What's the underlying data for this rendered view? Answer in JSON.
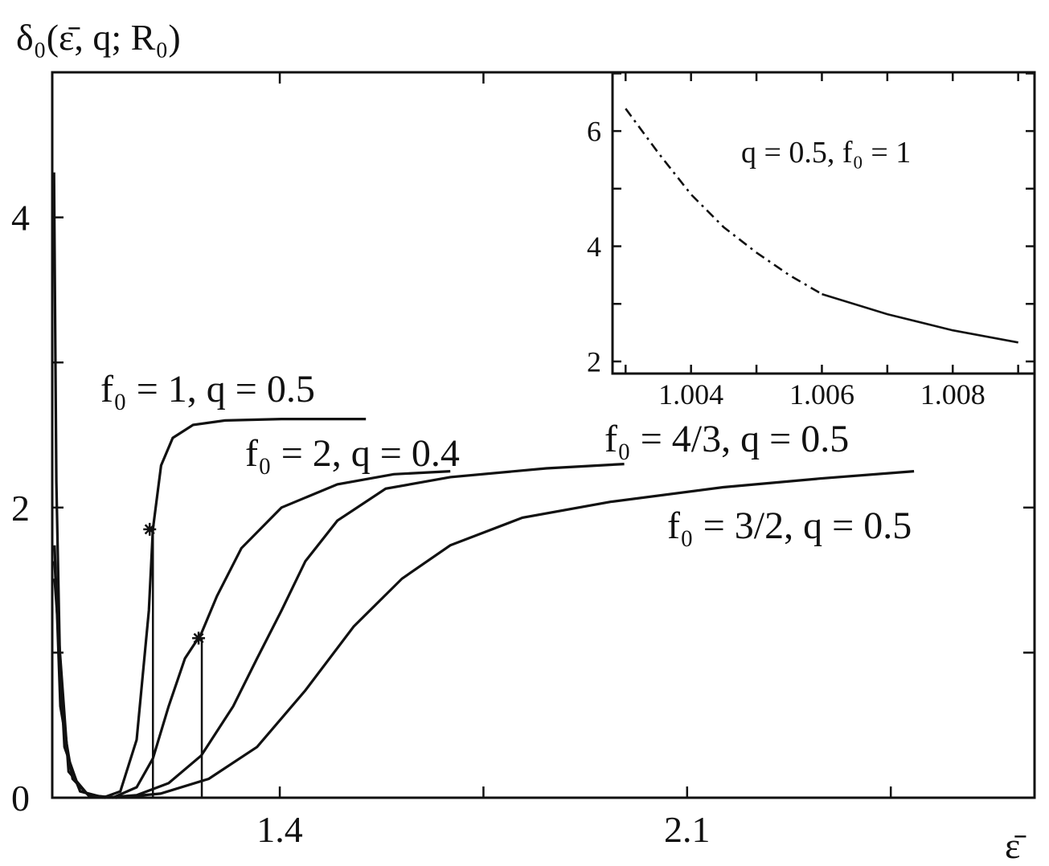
{
  "chart_data": [
    {
      "type": "line",
      "ylabel": "δ₀(ε̄, q; R₀)",
      "xlabel": "ε̄",
      "xlim": [
        1.009,
        2.697
      ],
      "xticks": [
        1.4,
        2.1
      ],
      "xminor": [
        1.75,
        2.45
      ],
      "ylim": [
        0,
        5
      ],
      "yticks": [
        0,
        2,
        4
      ],
      "yminor": [
        1,
        3
      ],
      "series": [
        {
          "name": "f₀ = 1, q = 0.5",
          "color": "#111111",
          "style": "solid",
          "x": [
            1.012,
            1.016,
            1.023,
            1.037,
            1.057,
            1.096,
            1.126,
            1.154,
            1.175,
            1.182,
            1.196,
            1.216,
            1.251,
            1.306,
            1.403,
            1.548
          ],
          "values": [
            4.31,
            2.18,
            0.79,
            0.24,
            0.044,
            0,
            0.044,
            0.4,
            1.29,
            1.85,
            2.29,
            2.48,
            2.57,
            2.6,
            2.61,
            2.61
          ]
        },
        {
          "name": "f₀ = 2, q = 0.4",
          "color": "#111111",
          "style": "solid",
          "x": [
            1.013,
            1.023,
            1.044,
            1.071,
            1.113,
            1.154,
            1.182,
            1.209,
            1.237,
            1.265,
            1.292,
            1.334,
            1.403,
            1.499,
            1.596,
            1.693
          ],
          "values": [
            1.74,
            0.63,
            0.13,
            0.017,
            0,
            0.072,
            0.27,
            0.63,
            0.96,
            1.13,
            1.39,
            1.72,
            2.0,
            2.16,
            2.23,
            2.25
          ]
        },
        {
          "name": "f₀ = 4/3, q = 0.5",
          "color": "#111111",
          "style": "solid",
          "x": [
            1.013,
            1.03,
            1.057,
            1.099,
            1.154,
            1.209,
            1.265,
            1.32,
            1.361,
            1.403,
            1.444,
            1.499,
            1.582,
            1.693,
            1.858,
            1.992
          ],
          "values": [
            1.63,
            0.35,
            0.044,
            0,
            0.017,
            0.1,
            0.29,
            0.63,
            0.96,
            1.29,
            1.63,
            1.91,
            2.13,
            2.21,
            2.27,
            2.3
          ]
        },
        {
          "name": "f₀ = 3/2, q = 0.5",
          "color": "#111111",
          "style": "solid",
          "x": [
            1.013,
            1.037,
            1.071,
            1.119,
            1.195,
            1.278,
            1.361,
            1.444,
            1.527,
            1.61,
            1.693,
            1.817,
            1.969,
            2.162,
            2.328,
            2.49
          ],
          "values": [
            1.51,
            0.18,
            0.017,
            0,
            0.028,
            0.13,
            0.35,
            0.74,
            1.18,
            1.51,
            1.74,
            1.93,
            2.04,
            2.14,
            2.2,
            2.25
          ]
        }
      ],
      "markers": [
        {
          "x": 1.182,
          "y": 1.85
        },
        {
          "x": 1.266,
          "y": 1.1
        }
      ]
    },
    {
      "type": "line",
      "annotation": "q = 0.5, f₀ = 1",
      "xlim": [
        1.0028,
        1.00925
      ],
      "xticks": [
        1.004,
        1.006,
        1.008
      ],
      "xminor": [
        1.003,
        1.005,
        1.007,
        1.009
      ],
      "ylim": [
        1.79,
        7.02
      ],
      "yticks": [
        2,
        4,
        6
      ],
      "yminor": [
        3,
        5,
        7
      ],
      "series": [
        {
          "color": "#111111",
          "style": "dashdot",
          "x": [
            1.003,
            1.0035,
            1.004,
            1.0045,
            1.005,
            1.0055,
            1.006
          ],
          "values": [
            6.39,
            5.62,
            4.9,
            4.33,
            3.89,
            3.5,
            3.17
          ]
        },
        {
          "color": "#111111",
          "style": "solid",
          "x": [
            1.006,
            1.007,
            1.008,
            1.009
          ],
          "values": [
            3.17,
            2.82,
            2.54,
            2.33
          ]
        }
      ]
    }
  ]
}
